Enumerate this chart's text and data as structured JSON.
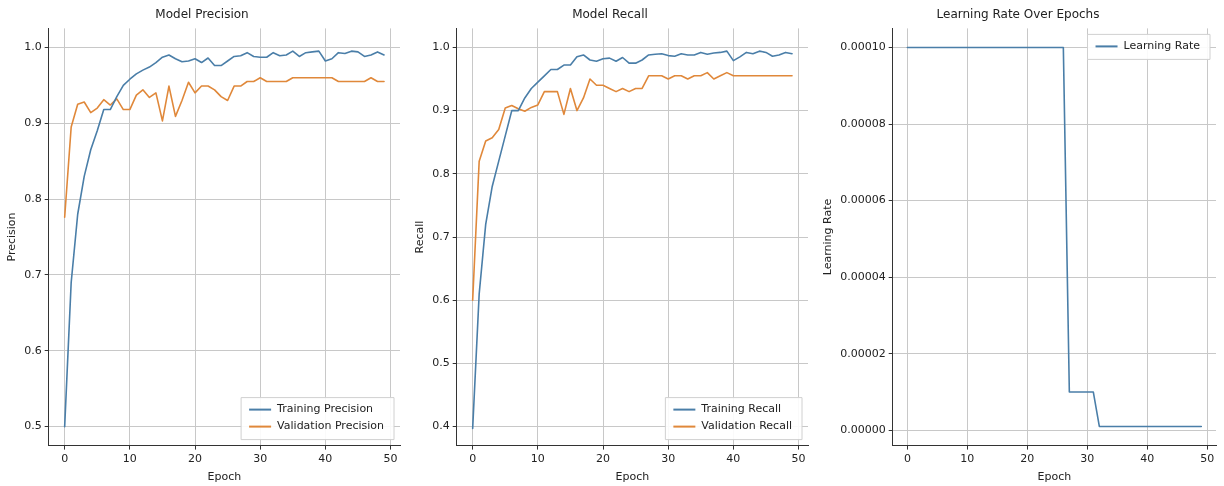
{
  "chart_data": [
    {
      "type": "line",
      "title": "Model Precision",
      "xlabel": "Epoch",
      "ylabel": "Precision",
      "x": [
        0,
        1,
        2,
        3,
        4,
        5,
        6,
        7,
        8,
        9,
        10,
        11,
        12,
        13,
        14,
        15,
        16,
        17,
        18,
        19,
        20,
        21,
        22,
        23,
        24,
        25,
        26,
        27,
        28,
        29,
        30,
        31,
        32,
        33,
        34,
        35,
        36,
        37,
        38,
        39,
        40,
        41,
        42,
        43,
        44,
        45,
        46,
        47,
        48,
        49
      ],
      "series": [
        {
          "name": "Training Precision",
          "color": "#4a7ea8",
          "values": [
            0.5,
            0.69,
            0.78,
            0.83,
            0.865,
            0.89,
            0.918,
            0.918,
            0.935,
            0.95,
            0.958,
            0.965,
            0.97,
            0.974,
            0.98,
            0.987,
            0.99,
            0.985,
            0.981,
            0.982,
            0.985,
            0.98,
            0.986,
            0.976,
            0.976,
            0.982,
            0.988,
            0.989,
            0.993,
            0.988,
            0.987,
            0.987,
            0.993,
            0.989,
            0.99,
            0.995,
            0.988,
            0.993,
            0.994,
            0.995,
            0.982,
            0.985,
            0.993,
            0.992,
            0.995,
            0.994,
            0.988,
            0.99,
            0.994,
            0.99
          ]
        },
        {
          "name": "Validation Precision",
          "color": "#e0883a",
          "values": [
            0.776,
            0.895,
            0.925,
            0.928,
            0.914,
            0.92,
            0.931,
            0.924,
            0.932,
            0.918,
            0.918,
            0.937,
            0.944,
            0.934,
            0.94,
            0.903,
            0.949,
            0.909,
            0.93,
            0.954,
            0.94,
            0.949,
            0.949,
            0.944,
            0.935,
            0.93,
            0.949,
            0.949,
            0.955,
            0.955,
            0.96,
            0.955,
            0.955,
            0.955,
            0.955,
            0.96,
            0.96,
            0.96,
            0.96,
            0.96,
            0.96,
            0.96,
            0.955,
            0.955,
            0.955,
            0.955,
            0.955,
            0.96,
            0.955,
            0.955
          ]
        }
      ],
      "xlim": [
        -2.45,
        51.45
      ],
      "xticks": [
        0,
        10,
        20,
        30,
        40,
        50
      ],
      "ylim": [
        0.475,
        1.025
      ],
      "yticks": [
        {
          "value": 0.5,
          "label": "0.5"
        },
        {
          "value": 0.6,
          "label": "0.6"
        },
        {
          "value": 0.7,
          "label": "0.7"
        },
        {
          "value": 0.8,
          "label": "0.8"
        },
        {
          "value": 0.9,
          "label": "0.9"
        },
        {
          "value": 1,
          "label": "1.0"
        }
      ],
      "grid": true,
      "legend": "bottom right",
      "line_style": "solid"
    },
    {
      "type": "line",
      "title": "Model Recall",
      "xlabel": "Epoch",
      "ylabel": "Recall",
      "x": [
        0,
        1,
        2,
        3,
        4,
        5,
        6,
        7,
        8,
        9,
        10,
        11,
        12,
        13,
        14,
        15,
        16,
        17,
        18,
        19,
        20,
        21,
        22,
        23,
        24,
        25,
        26,
        27,
        28,
        29,
        30,
        31,
        32,
        33,
        34,
        35,
        36,
        37,
        38,
        39,
        40,
        41,
        42,
        43,
        44,
        45,
        46,
        47,
        48,
        49
      ],
      "series": [
        {
          "name": "Training Recall",
          "color": "#4a7ea8",
          "values": [
            0.397,
            0.61,
            0.72,
            0.78,
            0.82,
            0.86,
            0.9,
            0.9,
            0.92,
            0.935,
            0.945,
            0.955,
            0.965,
            0.965,
            0.972,
            0.972,
            0.985,
            0.988,
            0.98,
            0.978,
            0.982,
            0.983,
            0.978,
            0.984,
            0.975,
            0.975,
            0.98,
            0.988,
            0.989,
            0.99,
            0.987,
            0.986,
            0.99,
            0.988,
            0.988,
            0.992,
            0.989,
            0.991,
            0.992,
            0.994,
            0.979,
            0.985,
            0.992,
            0.99,
            0.994,
            0.992,
            0.986,
            0.988,
            0.992,
            0.99
          ]
        },
        {
          "name": "Validation Recall",
          "color": "#e0883a",
          "values": [
            0.6,
            0.82,
            0.852,
            0.857,
            0.87,
            0.904,
            0.908,
            0.903,
            0.899,
            0.905,
            0.909,
            0.93,
            0.93,
            0.93,
            0.894,
            0.935,
            0.9,
            0.92,
            0.95,
            0.94,
            0.94,
            0.935,
            0.93,
            0.935,
            0.93,
            0.935,
            0.935,
            0.955,
            0.955,
            0.955,
            0.95,
            0.955,
            0.955,
            0.95,
            0.955,
            0.955,
            0.96,
            0.95,
            0.955,
            0.96,
            0.955,
            0.955,
            0.955,
            0.955,
            0.955,
            0.955,
            0.955,
            0.955,
            0.955,
            0.955
          ]
        }
      ],
      "xlim": [
        -2.45,
        51.45
      ],
      "xticks": [
        0,
        10,
        20,
        30,
        40,
        50
      ],
      "ylim": [
        0.37,
        1.03
      ],
      "yticks": [
        {
          "value": 0.4,
          "label": "0.4"
        },
        {
          "value": 0.5,
          "label": "0.5"
        },
        {
          "value": 0.6,
          "label": "0.6"
        },
        {
          "value": 0.7,
          "label": "0.7"
        },
        {
          "value": 0.8,
          "label": "0.8"
        },
        {
          "value": 0.9,
          "label": "0.9"
        },
        {
          "value": 1,
          "label": "1.0"
        }
      ],
      "grid": true,
      "legend": "bottom right",
      "line_style": "solid"
    },
    {
      "type": "line",
      "title": "Learning Rate Over Epochs",
      "xlabel": "Epoch",
      "ylabel": "Learning Rate",
      "x": [
        0,
        1,
        2,
        3,
        4,
        5,
        6,
        7,
        8,
        9,
        10,
        11,
        12,
        13,
        14,
        15,
        16,
        17,
        18,
        19,
        20,
        21,
        22,
        23,
        24,
        25,
        26,
        27,
        28,
        29,
        30,
        31,
        32,
        33,
        34,
        35,
        36,
        37,
        38,
        39,
        40,
        41,
        42,
        43,
        44,
        45,
        46,
        47,
        48,
        49
      ],
      "series": [
        {
          "name": "Learning Rate",
          "color": "#4a7ea8",
          "values": [
            0.0001,
            0.0001,
            0.0001,
            0.0001,
            0.0001,
            0.0001,
            0.0001,
            0.0001,
            0.0001,
            0.0001,
            0.0001,
            0.0001,
            0.0001,
            0.0001,
            0.0001,
            0.0001,
            0.0001,
            0.0001,
            0.0001,
            0.0001,
            0.0001,
            0.0001,
            0.0001,
            0.0001,
            0.0001,
            0.0001,
            0.0001,
            1e-05,
            1e-05,
            1e-05,
            1e-05,
            1e-05,
            1e-06,
            1e-06,
            1e-06,
            1e-06,
            1e-06,
            1e-06,
            1e-06,
            1e-06,
            1e-06,
            1e-06,
            1e-06,
            1e-06,
            1e-06,
            1e-06,
            1e-06,
            1e-06,
            1e-06,
            1e-06
          ]
        }
      ],
      "xlim": [
        -2.45,
        51.45
      ],
      "xticks": [
        0,
        10,
        20,
        30,
        40,
        50
      ],
      "ylim": [
        -4e-06,
        0.000105
      ],
      "yticks": [
        {
          "value": 0,
          "label": "0.00000"
        },
        {
          "value": 2e-05,
          "label": "0.00002"
        },
        {
          "value": 4e-05,
          "label": "0.00004"
        },
        {
          "value": 6e-05,
          "label": "0.00006"
        },
        {
          "value": 8e-05,
          "label": "0.00008"
        },
        {
          "value": 0.0001,
          "label": "0.00010"
        }
      ],
      "grid": true,
      "legend": "top right",
      "line_style": "solid"
    }
  ]
}
